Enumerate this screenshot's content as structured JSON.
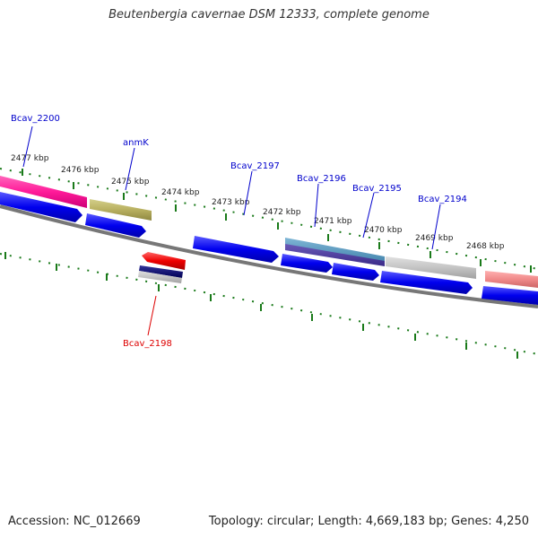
{
  "title": "Beutenbergia cavernae DSM 12333, complete genome",
  "footer": {
    "accession": "Accession: NC_012669",
    "summary": "Topology: circular; Length: 4,669,183 bp; Genes: 4,250"
  },
  "ruler_labels": [
    "2477 kbp",
    "2476 kbp",
    "2475 kbp",
    "2474 kbp",
    "2473 kbp",
    "2472 kbp",
    "2471 kbp",
    "2470 kbp",
    "2469 kbp",
    "2468 kbp"
  ],
  "gene_labels": [
    {
      "text": "Bcav_2200",
      "color": "#0000cc"
    },
    {
      "text": "anmK",
      "color": "#0000cc"
    },
    {
      "text": "Bcav_2197",
      "color": "#0000cc"
    },
    {
      "text": "Bcav_2196",
      "color": "#0000cc"
    },
    {
      "text": "Bcav_2195",
      "color": "#0000cc"
    },
    {
      "text": "Bcav_2194",
      "color": "#0000cc"
    },
    {
      "text": "Bcav_2198",
      "color": "#dd0000"
    }
  ],
  "colors": {
    "cds_forward": "#0000ee",
    "backbone": "#777777",
    "ticks": "#1a7a1a",
    "label_forward": "#0000cc",
    "label_reverse": "#dd0000"
  }
}
